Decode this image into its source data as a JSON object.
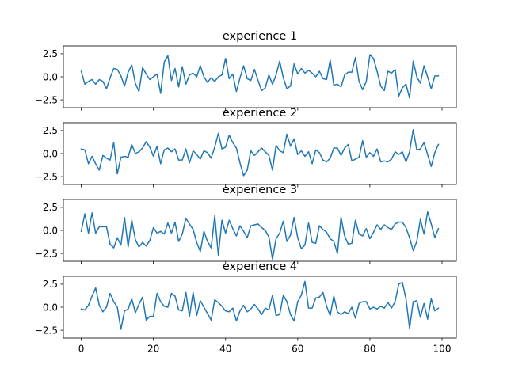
{
  "chart_data": [
    {
      "type": "line",
      "title": "experience 1",
      "xlim": [
        -4.95,
        103.95
      ],
      "ylim": [
        -3.35,
        3.35
      ],
      "x_ticks": [
        0,
        20,
        40,
        60,
        80,
        100
      ],
      "x_tick_labels_visible": false,
      "y_ticks": [
        -2.5,
        0.0,
        2.5
      ],
      "y_tick_labels": [
        "−2.5",
        "0.0",
        "2.5"
      ],
      "color": "#1f77b4",
      "grid": false,
      "x": [
        0,
        1,
        2,
        3,
        4,
        5,
        6,
        7,
        8,
        9,
        10,
        11,
        12,
        13,
        14,
        15,
        16,
        17,
        18,
        19,
        20,
        21,
        22,
        23,
        24,
        25,
        26,
        27,
        28,
        29,
        30,
        31,
        32,
        33,
        34,
        35,
        36,
        37,
        38,
        39,
        40,
        41,
        42,
        43,
        44,
        45,
        46,
        47,
        48,
        49,
        50,
        51,
        52,
        53,
        54,
        55,
        56,
        57,
        58,
        59,
        60,
        61,
        62,
        63,
        64,
        65,
        66,
        67,
        68,
        69,
        70,
        71,
        72,
        73,
        74,
        75,
        76,
        77,
        78,
        79,
        80,
        81,
        82,
        83,
        84,
        85,
        86,
        87,
        88,
        89,
        90,
        91,
        92,
        93,
        94,
        95,
        96,
        97,
        98,
        99
      ],
      "values": [
        0.6,
        -0.8,
        -0.5,
        -0.3,
        -0.8,
        -0.3,
        -0.5,
        -1.3,
        -0.1,
        0.9,
        0.8,
        0.1,
        -1.0,
        0.5,
        1.3,
        -0.7,
        -1.6,
        1.0,
        0.3,
        -0.3,
        0.0,
        0.3,
        -1.8,
        1.6,
        2.3,
        -0.4,
        0.9,
        -1.1,
        1.1,
        -0.8,
        0.2,
        0.4,
        0.0,
        1.2,
        0.0,
        -0.6,
        -0.1,
        -0.5,
        0.0,
        0.2,
        2.0,
        -0.2,
        0.3,
        -1.6,
        -0.1,
        1.2,
        -0.2,
        -0.4,
        0.8,
        -0.4,
        -1.5,
        -1.2,
        0.2,
        -0.8,
        0.2,
        1.7,
        -0.1,
        -1.3,
        -1.0,
        1.4,
        0.3,
        0.9,
        0.4,
        0.7,
        0.4,
        0.0,
        0.6,
        -0.2,
        -0.3,
        1.8,
        -0.9,
        -0.8,
        -1.1,
        0.2,
        0.5,
        0.5,
        2.1,
        -0.5,
        -1.4,
        -0.5,
        2.4,
        2.0,
        0.6,
        -1.0,
        -1.5,
        0.6,
        0.4,
        0.8,
        -2.1,
        -1.2,
        -0.8,
        -2.3,
        1.7,
        0.0,
        -0.7,
        1.2,
        0.0,
        -1.3,
        0.1,
        0.1
      ]
    },
    {
      "type": "line",
      "title": "experience 2",
      "xlim": [
        -4.95,
        103.95
      ],
      "ylim": [
        -3.35,
        3.35
      ],
      "x_ticks": [
        0,
        20,
        40,
        60,
        80,
        100
      ],
      "x_tick_labels_visible": false,
      "y_ticks": [
        -2.5,
        0.0,
        2.5
      ],
      "y_tick_labels": [
        "−2.5",
        "0.0",
        "2.5"
      ],
      "color": "#1f77b4",
      "grid": false,
      "x": [
        0,
        1,
        2,
        3,
        4,
        5,
        6,
        7,
        8,
        9,
        10,
        11,
        12,
        13,
        14,
        15,
        16,
        17,
        18,
        19,
        20,
        21,
        22,
        23,
        24,
        25,
        26,
        27,
        28,
        29,
        30,
        31,
        32,
        33,
        34,
        35,
        36,
        37,
        38,
        39,
        40,
        41,
        42,
        43,
        44,
        45,
        46,
        47,
        48,
        49,
        50,
        51,
        52,
        53,
        54,
        55,
        56,
        57,
        58,
        59,
        60,
        61,
        62,
        63,
        64,
        65,
        66,
        67,
        68,
        69,
        70,
        71,
        72,
        73,
        74,
        75,
        76,
        77,
        78,
        79,
        80,
        81,
        82,
        83,
        84,
        85,
        86,
        87,
        88,
        89,
        90,
        91,
        92,
        93,
        94,
        95,
        96,
        97,
        98,
        99
      ],
      "values": [
        0.5,
        0.4,
        -1.1,
        -0.3,
        -1.1,
        -1.8,
        -0.2,
        -0.5,
        -0.7,
        1.2,
        -2.2,
        -0.4,
        -0.3,
        -0.4,
        1.0,
        0.0,
        0.2,
        0.6,
        1.3,
        0.7,
        -0.3,
        0.8,
        -1.1,
        0.4,
        0.6,
        0.2,
        0.5,
        -0.7,
        -0.7,
        0.5,
        -1.0,
        0.3,
        -0.1,
        -0.6,
        0.3,
        0.1,
        -0.5,
        0.7,
        2.2,
        0.5,
        0.7,
        2.0,
        1.2,
        0.6,
        -1.0,
        -2.4,
        -1.8,
        0.3,
        -0.2,
        0.2,
        0.6,
        0.2,
        -0.2,
        -1.8,
        0.9,
        0.3,
        0.1,
        2.1,
        0.8,
        1.6,
        -0.1,
        0.3,
        -0.3,
        0.2,
        -1.1,
        0.4,
        0.1,
        -0.7,
        -0.9,
        -0.5,
        0.6,
        0.6,
        -0.2,
        0.6,
        1.0,
        -0.8,
        -0.6,
        -0.4,
        1.4,
        -0.4,
        0.1,
        -0.3,
        0.5,
        -0.9,
        -0.8,
        -0.9,
        -0.6,
        0.2,
        -0.1,
        0.2,
        -0.9,
        0.2,
        2.6,
        0.4,
        0.5,
        1.2,
        -0.1,
        -1.4,
        0.1,
        1.0
      ]
    },
    {
      "type": "line",
      "title": "experience 3",
      "xlim": [
        -4.95,
        103.95
      ],
      "ylim": [
        -3.35,
        3.35
      ],
      "x_ticks": [
        0,
        20,
        40,
        60,
        80,
        100
      ],
      "x_tick_labels_visible": false,
      "y_ticks": [
        -2.5,
        0.0,
        2.5
      ],
      "y_tick_labels": [
        "−2.5",
        "0.0",
        "2.5"
      ],
      "color": "#1f77b4",
      "grid": false,
      "x": [
        0,
        1,
        2,
        3,
        4,
        5,
        6,
        7,
        8,
        9,
        10,
        11,
        12,
        13,
        14,
        15,
        16,
        17,
        18,
        19,
        20,
        21,
        22,
        23,
        24,
        25,
        26,
        27,
        28,
        29,
        30,
        31,
        32,
        33,
        34,
        35,
        36,
        37,
        38,
        39,
        40,
        41,
        42,
        43,
        44,
        45,
        46,
        47,
        48,
        49,
        50,
        51,
        52,
        53,
        54,
        55,
        56,
        57,
        58,
        59,
        60,
        61,
        62,
        63,
        64,
        65,
        66,
        67,
        68,
        69,
        70,
        71,
        72,
        73,
        74,
        75,
        76,
        77,
        78,
        79,
        80,
        81,
        82,
        83,
        84,
        85,
        86,
        87,
        88,
        89,
        90,
        91,
        92,
        93,
        94,
        95,
        96,
        97,
        98,
        99
      ],
      "values": [
        -0.1,
        1.8,
        -0.3,
        1.9,
        -0.3,
        0.4,
        0.4,
        0.4,
        -1.5,
        -1.9,
        -0.8,
        -1.6,
        1.4,
        -1.8,
        1.1,
        -1.0,
        -1.8,
        -1.3,
        -1.7,
        -1.1,
        0.3,
        -0.3,
        -0.1,
        -0.4,
        0.8,
        -0.3,
        0.9,
        -1.2,
        -0.4,
        1.3,
        0.7,
        0.1,
        -1.3,
        -2.3,
        -0.1,
        -1.2,
        -1.9,
        1.6,
        -2.7,
        1.1,
        -0.3,
        1.1,
        0.2,
        -0.6,
        0.5,
        -0.1,
        -0.8,
        0.5,
        0.6,
        0.7,
        0.3,
        0.0,
        -0.7,
        -3.1,
        -0.9,
        -0.3,
        1.0,
        -1.2,
        -0.5,
        1.4,
        -0.8,
        -2.0,
        -1.6,
        0.8,
        -1.3,
        -1.4,
        0.5,
        0.1,
        -0.2,
        -0.9,
        -1.2,
        -2.5,
        1.4,
        -0.6,
        -1.5,
        -1.4,
        1.1,
        -0.4,
        -0.6,
        0.2,
        -0.9,
        -0.2,
        0.6,
        0.1,
        0.6,
        0.3,
        0.1,
        0.7,
        0.9,
        0.9,
        0.3,
        -0.8,
        -2.2,
        -1.2,
        1.2,
        -0.4,
        2.0,
        0.7,
        -0.8,
        0.2
      ]
    },
    {
      "type": "line",
      "title": "experience 4",
      "xlim": [
        -4.95,
        103.95
      ],
      "ylim": [
        -3.35,
        3.35
      ],
      "x_ticks": [
        0,
        20,
        40,
        60,
        80,
        100
      ],
      "x_tick_labels": [
        "0",
        "20",
        "40",
        "60",
        "80",
        "100"
      ],
      "x_tick_labels_visible": true,
      "y_ticks": [
        -2.5,
        0.0,
        2.5
      ],
      "y_tick_labels": [
        "−2.5",
        "0.0",
        "2.5"
      ],
      "color": "#1f77b4",
      "grid": false,
      "x": [
        0,
        1,
        2,
        3,
        4,
        5,
        6,
        7,
        8,
        9,
        10,
        11,
        12,
        13,
        14,
        15,
        16,
        17,
        18,
        19,
        20,
        21,
        22,
        23,
        24,
        25,
        26,
        27,
        28,
        29,
        30,
        31,
        32,
        33,
        34,
        35,
        36,
        37,
        38,
        39,
        40,
        41,
        42,
        43,
        44,
        45,
        46,
        47,
        48,
        49,
        50,
        51,
        52,
        53,
        54,
        55,
        56,
        57,
        58,
        59,
        60,
        61,
        62,
        63,
        64,
        65,
        66,
        67,
        68,
        69,
        70,
        71,
        72,
        73,
        74,
        75,
        76,
        77,
        78,
        79,
        80,
        81,
        82,
        83,
        84,
        85,
        86,
        87,
        88,
        89,
        90,
        91,
        92,
        93,
        94,
        95,
        96,
        97,
        98,
        99
      ],
      "values": [
        -0.2,
        -0.3,
        0.2,
        1.2,
        2.1,
        0.2,
        -0.5,
        0.0,
        1.5,
        0.6,
        0.0,
        -2.4,
        -0.4,
        -0.2,
        0.9,
        -0.6,
        0.3,
        1.1,
        -1.4,
        -1.0,
        -1.0,
        1.5,
        0.6,
        0.1,
        0.0,
        1.5,
        1.2,
        -0.3,
        -0.4,
        1.6,
        -1.0,
        1.6,
        -0.9,
        0.7,
        0.0,
        -0.7,
        -1.4,
        0.8,
        0.5,
        0.1,
        -0.4,
        -0.5,
        -0.1,
        -1.5,
        -0.4,
        0.2,
        -0.5,
        -0.2,
        0.3,
        -0.2,
        -0.8,
        -0.1,
        -0.3,
        1.3,
        -0.9,
        -0.8,
        1.3,
        0.6,
        -0.8,
        -1.5,
        0.6,
        1.3,
        2.8,
        -0.1,
        -0.1,
        1.0,
        1.1,
        1.6,
        0.1,
        -0.9,
        1.2,
        -0.5,
        -0.8,
        -0.5,
        -0.7,
        0.0,
        -1.2,
        0.4,
        0.6,
        0.6,
        -0.2,
        0.0,
        -0.2,
        0.1,
        -0.1,
        0.5,
        -0.1,
        0.6,
        2.5,
        2.7,
        0.9,
        -2.3,
        0.6,
        0.7,
        -1.1,
        0.4,
        -1.3,
        0.9,
        -0.4,
        -0.1
      ]
    }
  ]
}
